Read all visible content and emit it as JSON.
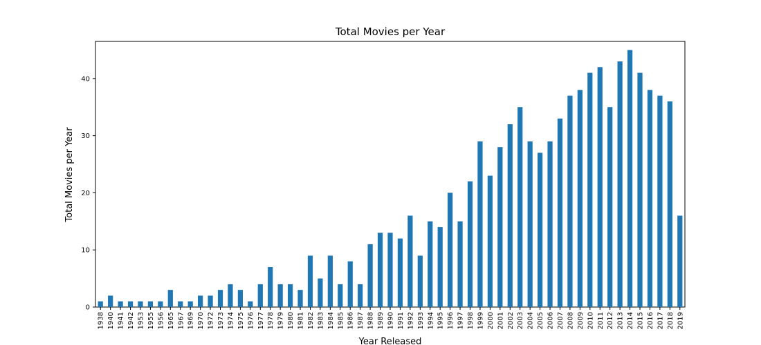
{
  "chart_data": {
    "type": "bar",
    "title": "Total Movies per Year",
    "xlabel": "Year Released",
    "ylabel": "Total Movies per Year",
    "ylim": [
      0,
      46.5
    ],
    "yticks": [
      0,
      10,
      20,
      30,
      40
    ],
    "grid": false,
    "bar_color": "#1f77b4",
    "categories": [
      "1938",
      "1940",
      "1941",
      "1942",
      "1953",
      "1955",
      "1956",
      "1965",
      "1967",
      "1969",
      "1970",
      "1972",
      "1973",
      "1974",
      "1975",
      "1976",
      "1977",
      "1978",
      "1979",
      "1980",
      "1981",
      "1982",
      "1983",
      "1984",
      "1985",
      "1986",
      "1987",
      "1988",
      "1989",
      "1990",
      "1991",
      "1992",
      "1993",
      "1994",
      "1995",
      "1996",
      "1997",
      "1998",
      "1999",
      "2000",
      "2001",
      "2002",
      "2003",
      "2004",
      "2005",
      "2006",
      "2007",
      "2008",
      "2009",
      "2010",
      "2011",
      "2012",
      "2013",
      "2014",
      "2015",
      "2016",
      "2017",
      "2018",
      "2019"
    ],
    "values": [
      1,
      2,
      1,
      1,
      1,
      1,
      1,
      3,
      1,
      1,
      2,
      2,
      3,
      4,
      3,
      1,
      4,
      7,
      4,
      4,
      3,
      9,
      5,
      9,
      4,
      8,
      4,
      11,
      13,
      13,
      12,
      16,
      9,
      15,
      14,
      20,
      15,
      22,
      29,
      23,
      28,
      32,
      35,
      29,
      27,
      29,
      33,
      37,
      38,
      41,
      42,
      35,
      43,
      45,
      41,
      38,
      37,
      36,
      16
    ]
  }
}
